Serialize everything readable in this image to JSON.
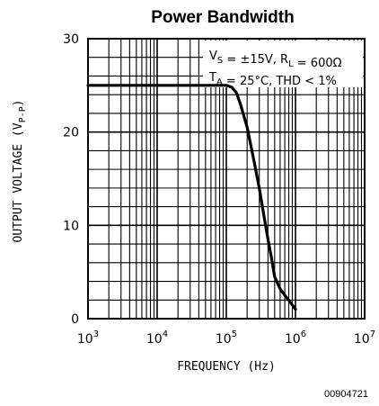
{
  "chart_data": {
    "type": "line",
    "title": "Power Bandwidth",
    "xlabel": "FREQUENCY (Hz)",
    "ylabel": "OUTPUT VOLTAGE (V",
    "ylabel_sub": "P-P",
    "ylabel_close": ")",
    "x_scale": "log",
    "xlim": [
      1000,
      10000000
    ],
    "ylim": [
      0,
      30
    ],
    "x_ticks": [
      {
        "base": "10",
        "exp": "3"
      },
      {
        "base": "10",
        "exp": "4"
      },
      {
        "base": "10",
        "exp": "5"
      },
      {
        "base": "10",
        "exp": "6"
      },
      {
        "base": "10",
        "exp": "7"
      }
    ],
    "y_ticks": [
      "0",
      "10",
      "20",
      "30"
    ],
    "grid": true,
    "annotations": [
      {
        "a": "V",
        "a_sub": "S",
        "b": " = ±15V, R",
        "b_sub": "L",
        "c": " = 600Ω"
      },
      {
        "a": "T",
        "a_sub": "A",
        "b": " = 25°C, THD < 1%",
        "b_sub": "",
        "c": ""
      }
    ],
    "series": [
      {
        "x": [
          1000,
          10000,
          100000,
          120000,
          140000,
          160000,
          200000,
          250000,
          300000,
          350000,
          400000,
          450000,
          500000,
          600000,
          700000,
          800000,
          1000000
        ],
        "y": [
          25,
          25,
          25,
          24.8,
          24.2,
          23,
          20.5,
          17,
          14,
          11,
          8.5,
          6.5,
          4.5,
          3.2,
          2.5,
          2,
          1
        ]
      }
    ],
    "footnote": "00904721"
  }
}
